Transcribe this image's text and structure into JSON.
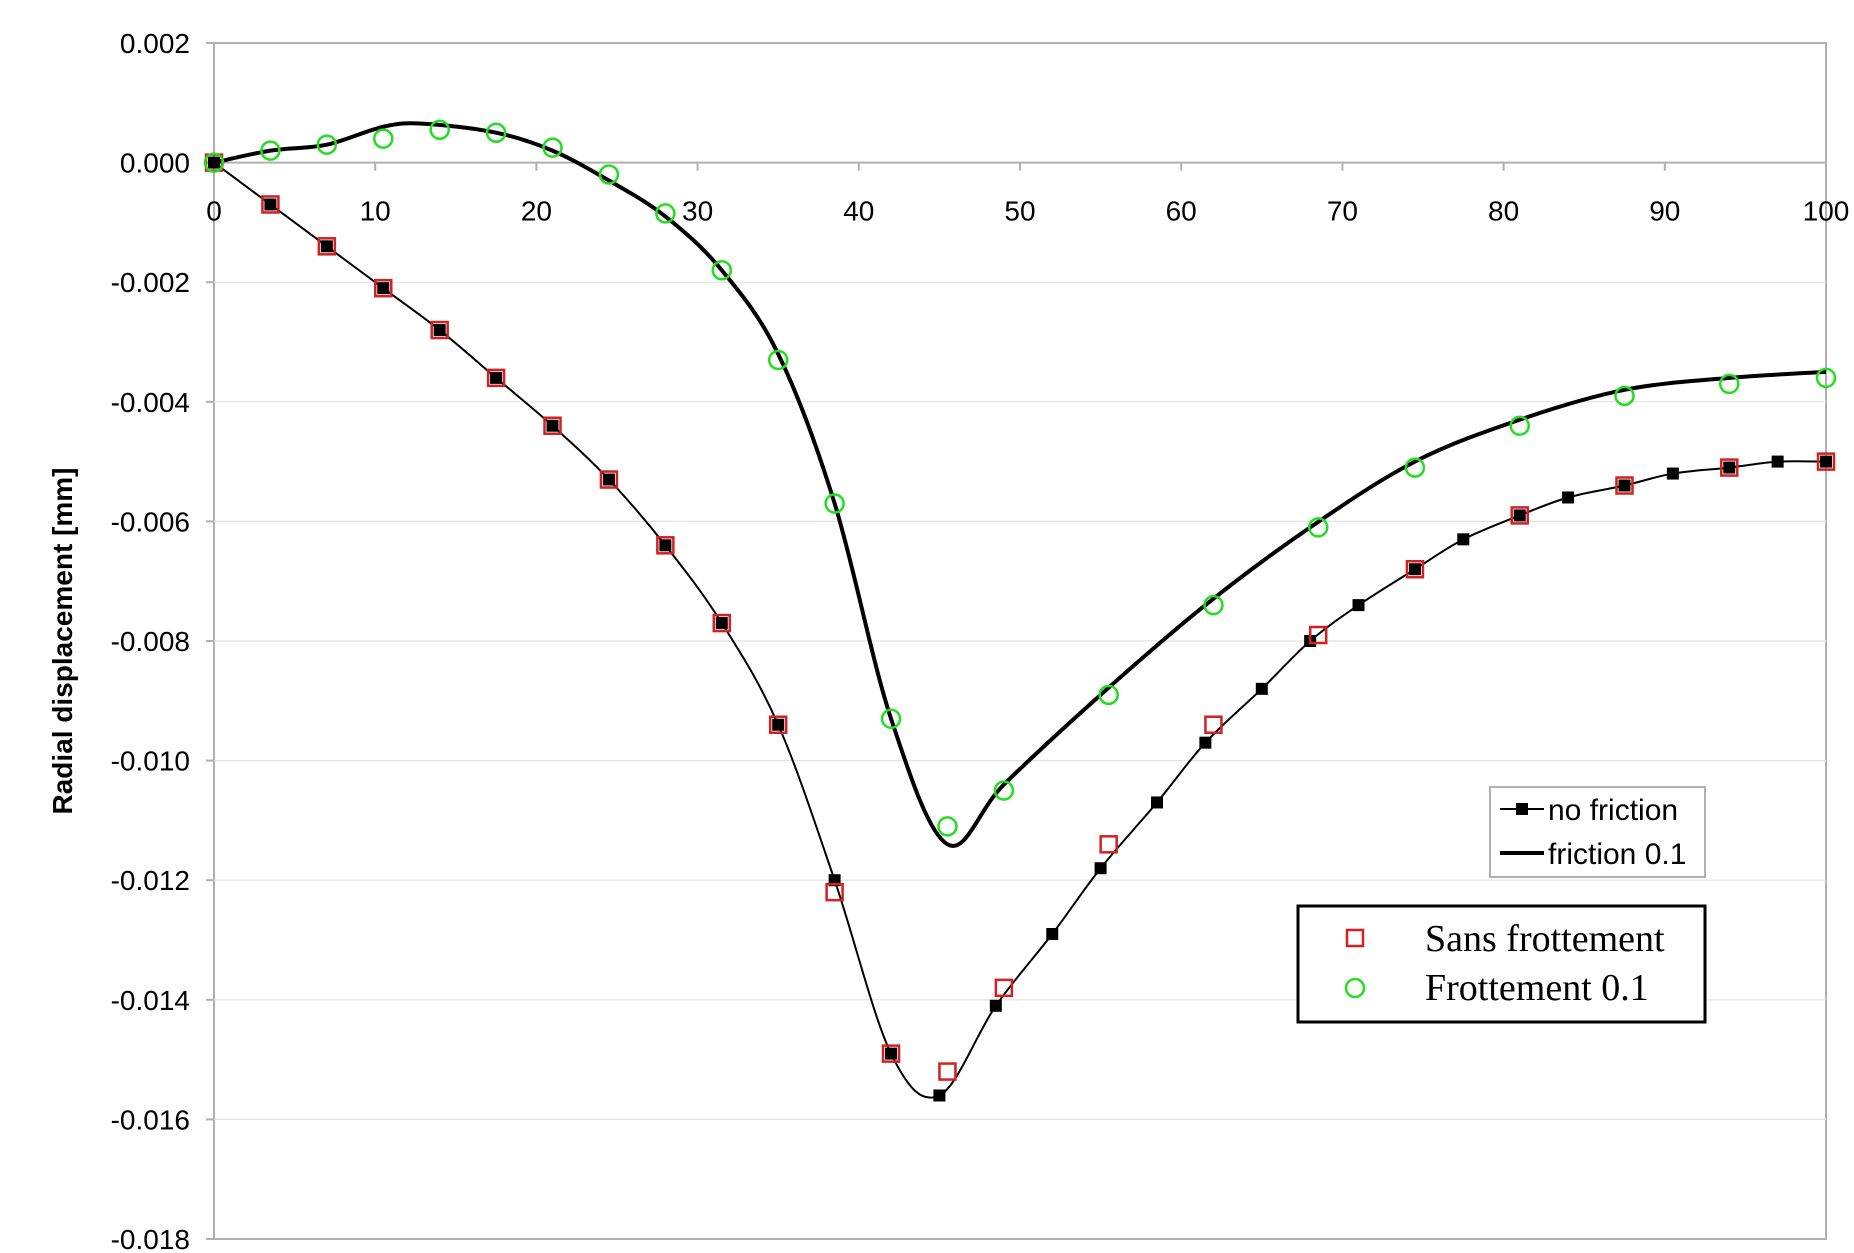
{
  "chart_data": {
    "type": "line",
    "title": "",
    "xlabel": "",
    "ylabel": "Radial displacement [mm]",
    "xlim": [
      0,
      100
    ],
    "ylim": [
      -0.018,
      0.002
    ],
    "x_ticks": [
      "0",
      "10",
      "20",
      "30",
      "40",
      "50",
      "60",
      "70",
      "80",
      "90",
      "100"
    ],
    "y_ticks": [
      "0.002",
      "0.000",
      "-0.002",
      "-0.004",
      "-0.006",
      "-0.008",
      "-0.010",
      "-0.012",
      "-0.014",
      "-0.016",
      "-0.018"
    ],
    "grid": "horizontal",
    "legends": [
      {
        "placement": "right",
        "entries": [
          "no friction",
          "friction 0.1"
        ]
      },
      {
        "placement": "bottom-right",
        "entries": [
          "Sans frottement",
          "Frottement 0.1"
        ]
      }
    ],
    "series": [
      {
        "name": "no friction",
        "style": "line-with-square-markers",
        "color": "#000000",
        "x": [
          0,
          3.5,
          7,
          10.5,
          14,
          17.5,
          21,
          24.5,
          28,
          31.5,
          35,
          38.5,
          42,
          45,
          48.5,
          52,
          55,
          58.5,
          61.5,
          65,
          68,
          71,
          74.5,
          77.5,
          81,
          84,
          87.5,
          90.5,
          94,
          97,
          100
        ],
        "y": [
          0.0,
          -0.0007,
          -0.0014,
          -0.0021,
          -0.0028,
          -0.0036,
          -0.0044,
          -0.0053,
          -0.0064,
          -0.0077,
          -0.0094,
          -0.012,
          -0.0149,
          -0.0156,
          -0.0141,
          -0.0129,
          -0.0118,
          -0.0107,
          -0.0097,
          -0.0088,
          -0.008,
          -0.0074,
          -0.0068,
          -0.0063,
          -0.0059,
          -0.0056,
          -0.0054,
          -0.0052,
          -0.0051,
          -0.005,
          -0.005
        ]
      },
      {
        "name": "friction 0.1",
        "style": "thick-line",
        "color": "#000000",
        "x": [
          0,
          3.5,
          7,
          10.5,
          13,
          17.5,
          21,
          24.5,
          28,
          31.5,
          35,
          38.5,
          42,
          45.5,
          49,
          55,
          61.5,
          68,
          74.5,
          81,
          87.5,
          94,
          100
        ],
        "y": [
          0.0,
          0.0002,
          0.0003,
          0.0006,
          0.00065,
          0.0005,
          0.0002,
          -0.0003,
          -0.0009,
          -0.0018,
          -0.0032,
          -0.0057,
          -0.0093,
          -0.0114,
          -0.0104,
          -0.0089,
          -0.0074,
          -0.0061,
          -0.005,
          -0.0043,
          -0.0038,
          -0.0036,
          -0.0035
        ]
      },
      {
        "name": "Sans frottement",
        "style": "open-square-markers",
        "color": "#d42020",
        "x": [
          0,
          3.5,
          7,
          10.5,
          14,
          17.5,
          21,
          24.5,
          28,
          31.5,
          35,
          38.5,
          42,
          45.5,
          49,
          55.5,
          62,
          68.5,
          74.5,
          81,
          87.5,
          94,
          100
        ],
        "y": [
          0.0,
          -0.0007,
          -0.0014,
          -0.0021,
          -0.0028,
          -0.0036,
          -0.0044,
          -0.0053,
          -0.0064,
          -0.0077,
          -0.0094,
          -0.0122,
          -0.0149,
          -0.0152,
          -0.0138,
          -0.0114,
          -0.0094,
          -0.0079,
          -0.0068,
          -0.0059,
          -0.0054,
          -0.0051,
          -0.005
        ]
      },
      {
        "name": "Frottement 0.1",
        "style": "open-circle-markers",
        "color": "#22dd22",
        "x": [
          0,
          3.5,
          7,
          10.5,
          14,
          17.5,
          21,
          24.5,
          28,
          31.5,
          35,
          38.5,
          42,
          45.5,
          49,
          55.5,
          62,
          68.5,
          74.5,
          81,
          87.5,
          94,
          100
        ],
        "y": [
          0.0,
          0.0002,
          0.0003,
          0.0004,
          0.00055,
          0.0005,
          0.00025,
          -0.0002,
          -0.00085,
          -0.0018,
          -0.0033,
          -0.0057,
          -0.0093,
          -0.0111,
          -0.0105,
          -0.0089,
          -0.0074,
          -0.0061,
          -0.0051,
          -0.0044,
          -0.0039,
          -0.0037,
          -0.0036
        ]
      }
    ]
  }
}
